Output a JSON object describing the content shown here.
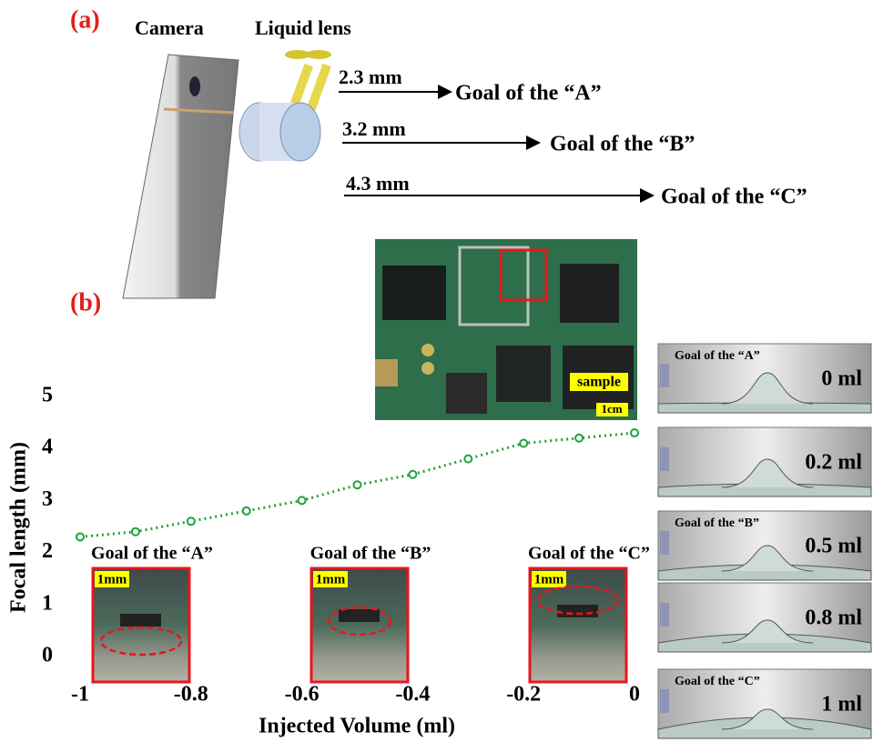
{
  "chart_data": {
    "type": "line",
    "x_label": "Injected Volume (ml)",
    "y_label": "Focal length (mm)",
    "x": [
      -1,
      -0.9,
      -0.8,
      -0.7,
      -0.6,
      -0.5,
      -0.4,
      -0.3,
      -0.2,
      -0.1,
      0
    ],
    "series": [
      {
        "color": "#1fa33a",
        "values": [
          2.3,
          2.4,
          2.6,
          2.8,
          3.0,
          3.3,
          3.5,
          3.8,
          4.1,
          4.2,
          4.3
        ]
      }
    ],
    "xlim": [
      -1,
      0
    ],
    "xticks": [
      -1,
      -0.8,
      -0.6,
      -0.4,
      -0.2,
      0
    ],
    "ylim": [
      0,
      5
    ],
    "yticks": [
      0,
      1,
      2,
      3,
      4,
      5
    ],
    "grid": false
  },
  "figure": {
    "panel_a": "(a)",
    "panel_b": "(b)",
    "camera_label": "Camera",
    "lens_label": "Liquid lens",
    "distances": [
      {
        "length": "2.3 mm",
        "goal": "Goal of the “A”"
      },
      {
        "length": "3.2 mm",
        "goal": "Goal of the “B”"
      },
      {
        "length": "4.3 mm",
        "goal": "Goal of the “C”"
      }
    ],
    "pcb": {
      "sample": "sample",
      "scale": "1cm"
    },
    "insets": [
      {
        "goal": "Goal of the “A”",
        "scale": "1mm"
      },
      {
        "goal": "Goal of the “B”",
        "scale": "1mm"
      },
      {
        "goal": "Goal of the “C”",
        "scale": "1mm"
      }
    ],
    "stages": [
      {
        "goal": "Goal of the “A”",
        "volume": "0 ml"
      },
      {
        "volume": "0.2 ml"
      },
      {
        "goal": "Goal of the “B”",
        "volume": "0.5 ml"
      },
      {
        "volume": "0.8 ml"
      },
      {
        "goal": "Goal of the “C”",
        "volume": "1 ml"
      }
    ]
  }
}
